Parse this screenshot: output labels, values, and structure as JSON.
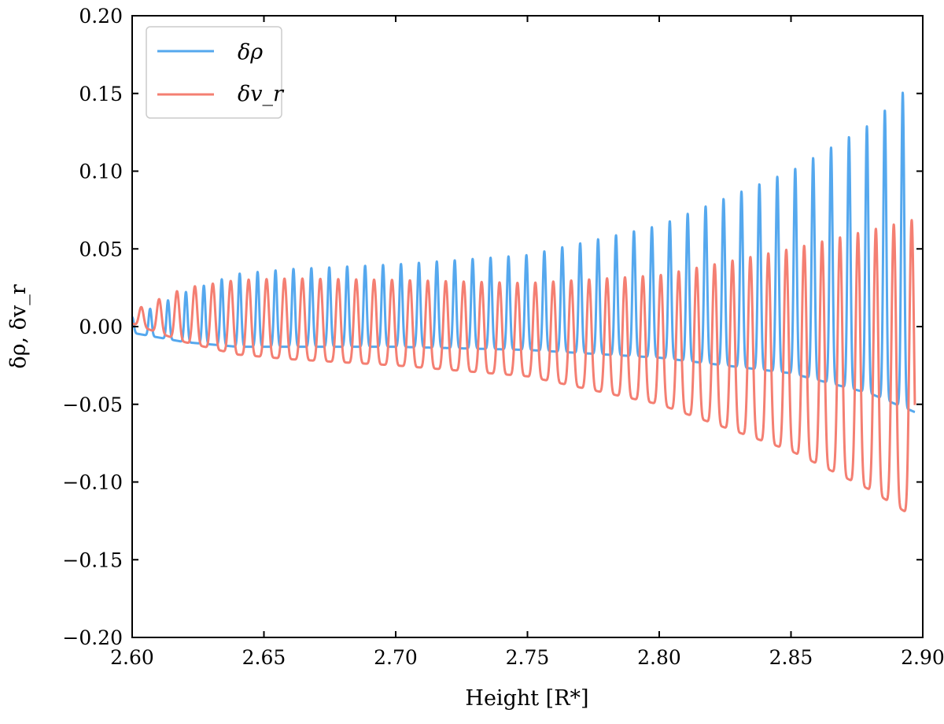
{
  "chart_data": {
    "type": "line",
    "title": "",
    "xlabel": "Height [R*]",
    "ylabel": "δρ, δv_r",
    "xlim": [
      2.6,
      2.9
    ],
    "ylim": [
      -0.2,
      0.2
    ],
    "x_ticks": [
      {
        "value": 2.6,
        "label": "2.60"
      },
      {
        "value": 2.65,
        "label": "2.65"
      },
      {
        "value": 2.7,
        "label": "2.70"
      },
      {
        "value": 2.75,
        "label": "2.75"
      },
      {
        "value": 2.8,
        "label": "2.80"
      },
      {
        "value": 2.85,
        "label": "2.85"
      },
      {
        "value": 2.9,
        "label": "2.90"
      }
    ],
    "y_ticks": [
      {
        "value": 0.2,
        "label": "0.20"
      },
      {
        "value": 0.15,
        "label": "0.15"
      },
      {
        "value": 0.1,
        "label": "0.10"
      },
      {
        "value": 0.05,
        "label": "0.05"
      },
      {
        "value": 0.0,
        "label": "0.00"
      },
      {
        "value": -0.05,
        "label": "−0.05"
      },
      {
        "value": -0.1,
        "label": "−0.10"
      },
      {
        "value": -0.15,
        "label": "−0.15"
      },
      {
        "value": -0.2,
        "label": "−0.20"
      }
    ],
    "grid": false,
    "legend_position": "top-left",
    "series": [
      {
        "name": "δρ",
        "color": "#55a8ee",
        "oscillation_period": 0.0068,
        "envelope_x": [
          2.6,
          2.62,
          2.64,
          2.66,
          2.7,
          2.75,
          2.8,
          2.85,
          2.88,
          2.897
        ],
        "envelope_max": [
          0.006,
          0.022,
          0.034,
          0.037,
          0.04,
          0.046,
          0.065,
          0.1,
          0.13,
          0.158
        ],
        "envelope_min": [
          -0.004,
          -0.01,
          -0.013,
          -0.013,
          -0.013,
          -0.015,
          -0.02,
          -0.03,
          -0.043,
          -0.055
        ]
      },
      {
        "name": "δv_r",
        "color": "#f47f72",
        "oscillation_period": 0.0068,
        "envelope_x": [
          2.6,
          2.62,
          2.64,
          2.66,
          2.7,
          2.75,
          2.8,
          2.85,
          2.88,
          2.897
        ],
        "envelope_max": [
          0.01,
          0.025,
          0.03,
          0.031,
          0.03,
          0.028,
          0.033,
          0.05,
          0.062,
          0.069
        ],
        "envelope_min": [
          0.002,
          -0.01,
          -0.018,
          -0.021,
          -0.025,
          -0.032,
          -0.05,
          -0.08,
          -0.105,
          -0.123
        ]
      }
    ]
  }
}
